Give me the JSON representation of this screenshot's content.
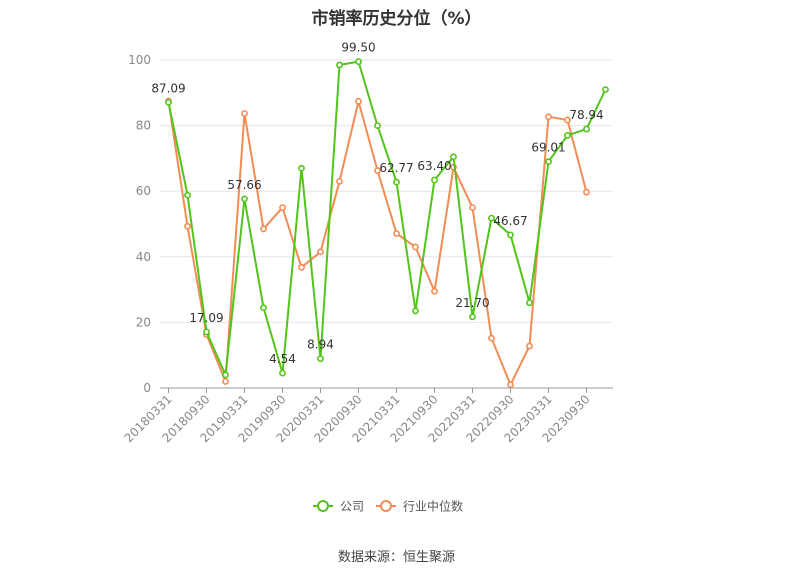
{
  "chart_data": {
    "type": "line",
    "title": "市销率历史分位（%）",
    "source": "数据来源：恒生聚源",
    "ylim": [
      0,
      100
    ],
    "yticks": [
      0,
      20,
      40,
      60,
      80,
      100
    ],
    "xtick_labels": [
      "20180331",
      "20180930",
      "20190331",
      "20190930",
      "20200331",
      "20200930",
      "20210331",
      "20210930",
      "20220331",
      "20220930",
      "20230331",
      "20230930"
    ],
    "x": [
      "20180331",
      "20180630",
      "20180930",
      "20181231",
      "20190331",
      "20190630",
      "20190930",
      "20191231",
      "20200331",
      "20200630",
      "20200930",
      "20201231",
      "20210331",
      "20210630",
      "20210930",
      "20211231",
      "20220331",
      "20220630",
      "20220930",
      "20221231",
      "20230331",
      "20230630",
      "20230930",
      "20231231"
    ],
    "grid": true,
    "legend_position": "bottom",
    "series": [
      {
        "name": "公司",
        "color": "#52c41a",
        "values": [
          87.09,
          58.8,
          17.09,
          4.0,
          57.66,
          24.5,
          4.54,
          67.0,
          8.94,
          98.5,
          99.5,
          80.0,
          62.77,
          23.5,
          63.4,
          70.5,
          21.7,
          51.8,
          46.67,
          26.0,
          69.01,
          77.0,
          78.94,
          91.0
        ]
      },
      {
        "name": "行业中位数",
        "color": "#f28c54",
        "values": [
          87.5,
          49.3,
          16.3,
          2.0,
          83.7,
          48.5,
          55.0,
          36.8,
          41.5,
          63.0,
          87.4,
          66.3,
          47.1,
          43.0,
          29.5,
          67.3,
          55.0,
          15.2,
          1.0,
          12.8,
          82.7,
          81.7,
          59.7,
          null
        ]
      }
    ],
    "data_labels": [
      {
        "index": 0,
        "text": "87.09"
      },
      {
        "index": 2,
        "text": "17.09"
      },
      {
        "index": 4,
        "text": "57.66"
      },
      {
        "index": 6,
        "text": "4.54"
      },
      {
        "index": 8,
        "text": "8.94"
      },
      {
        "index": 10,
        "text": "99.50"
      },
      {
        "index": 12,
        "text": "62.77"
      },
      {
        "index": 14,
        "text": "63.40"
      },
      {
        "index": 16,
        "text": "21.70"
      },
      {
        "index": 18,
        "text": "46.67"
      },
      {
        "index": 20,
        "text": "69.01"
      },
      {
        "index": 22,
        "text": "78.94"
      }
    ]
  }
}
